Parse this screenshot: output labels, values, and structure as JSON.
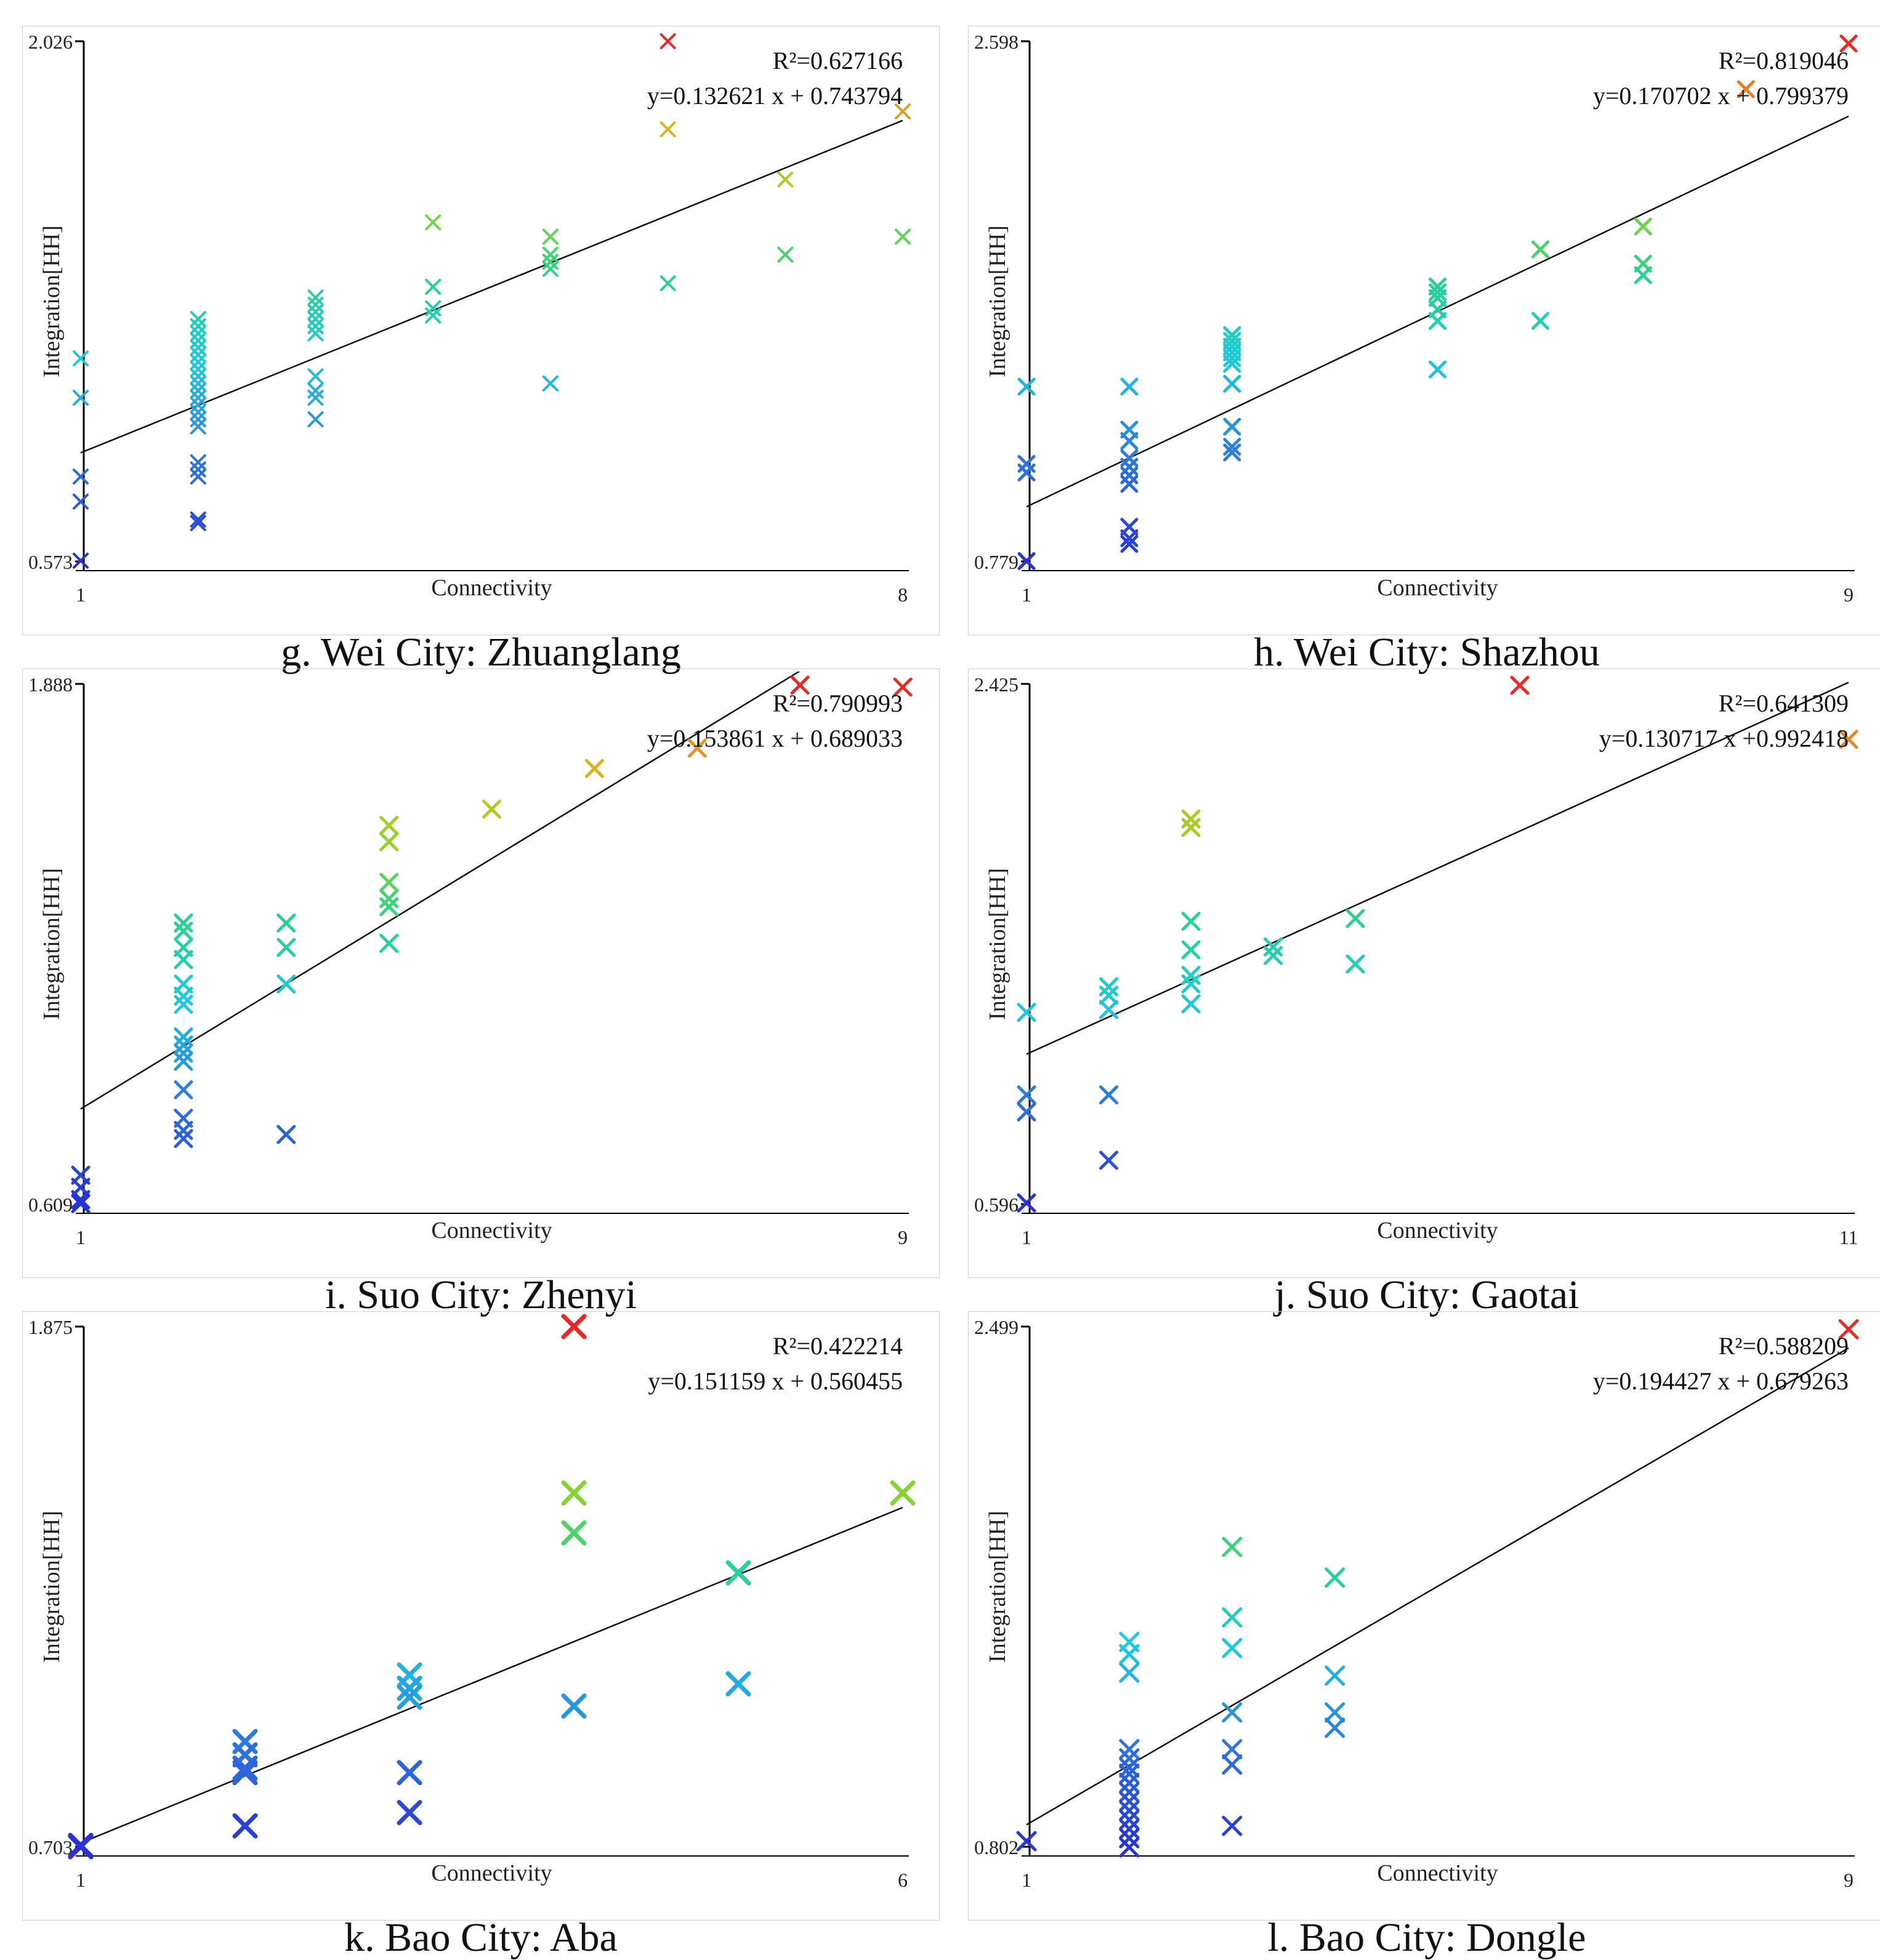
{
  "chart_data": [
    {
      "type": "scatter",
      "caption": "g. Wei City: Zhuanglang",
      "xlabel": "Connectivity",
      "ylabel": "Integration[HH]",
      "xlim": [
        1,
        8
      ],
      "ylim": [
        0.573,
        2.026
      ],
      "x_tick_labels": [
        "1",
        "8"
      ],
      "y_tick_labels": [
        "0.573",
        "2.026"
      ],
      "r2_text": "R²=0.627166",
      "equation_text": "y=0.132621 x + 0.743794",
      "slope": 0.132621,
      "intercept": 0.743794,
      "points": [
        {
          "x": 1,
          "y": 1.14
        },
        {
          "x": 1,
          "y": 1.03
        },
        {
          "x": 1,
          "y": 0.81
        },
        {
          "x": 1,
          "y": 0.74
        },
        {
          "x": 1,
          "y": 0.575
        },
        {
          "x": 2,
          "y": 1.25
        },
        {
          "x": 2,
          "y": 1.23
        },
        {
          "x": 2,
          "y": 1.21
        },
        {
          "x": 2,
          "y": 1.19
        },
        {
          "x": 2,
          "y": 1.17
        },
        {
          "x": 2,
          "y": 1.15
        },
        {
          "x": 2,
          "y": 1.13
        },
        {
          "x": 2,
          "y": 1.11
        },
        {
          "x": 2,
          "y": 1.09
        },
        {
          "x": 2,
          "y": 1.07
        },
        {
          "x": 2,
          "y": 1.05
        },
        {
          "x": 2,
          "y": 1.03
        },
        {
          "x": 2,
          "y": 1.01
        },
        {
          "x": 2,
          "y": 0.99
        },
        {
          "x": 2,
          "y": 0.97
        },
        {
          "x": 2,
          "y": 0.95
        },
        {
          "x": 2,
          "y": 0.85
        },
        {
          "x": 2,
          "y": 0.83
        },
        {
          "x": 2,
          "y": 0.81
        },
        {
          "x": 2,
          "y": 0.69
        },
        {
          "x": 2,
          "y": 0.68
        },
        {
          "x": 3,
          "y": 1.31
        },
        {
          "x": 3,
          "y": 1.29
        },
        {
          "x": 3,
          "y": 1.27
        },
        {
          "x": 3,
          "y": 1.25
        },
        {
          "x": 3,
          "y": 1.23
        },
        {
          "x": 3,
          "y": 1.21
        },
        {
          "x": 3,
          "y": 1.09
        },
        {
          "x": 3,
          "y": 1.05
        },
        {
          "x": 3,
          "y": 1.03
        },
        {
          "x": 3,
          "y": 0.97
        },
        {
          "x": 4,
          "y": 1.52
        },
        {
          "x": 4,
          "y": 1.34
        },
        {
          "x": 4,
          "y": 1.28
        },
        {
          "x": 4,
          "y": 1.26
        },
        {
          "x": 5,
          "y": 1.48
        },
        {
          "x": 5,
          "y": 1.43
        },
        {
          "x": 5,
          "y": 1.41
        },
        {
          "x": 5,
          "y": 1.39
        },
        {
          "x": 5,
          "y": 1.07
        },
        {
          "x": 6,
          "y": 2.026
        },
        {
          "x": 6,
          "y": 1.78
        },
        {
          "x": 6,
          "y": 1.35
        },
        {
          "x": 7,
          "y": 1.64
        },
        {
          "x": 7,
          "y": 1.43
        },
        {
          "x": 8,
          "y": 1.83
        },
        {
          "x": 8,
          "y": 1.48
        }
      ]
    },
    {
      "type": "scatter",
      "caption": "h. Wei City: Shazhou",
      "xlabel": "Connectivity",
      "ylabel": "Integration[HH]",
      "xlim": [
        1,
        9
      ],
      "ylim": [
        0.779,
        2.598
      ],
      "x_tick_labels": [
        "1",
        "9"
      ],
      "y_tick_labels": [
        "0.779",
        "2.598"
      ],
      "r2_text": "R²=0.819046",
      "equation_text": "y=0.170702 x + 0.799379",
      "slope": 0.170702,
      "intercept": 0.799379,
      "points": [
        {
          "x": 1,
          "y": 1.39
        },
        {
          "x": 1,
          "y": 1.12
        },
        {
          "x": 1,
          "y": 1.09
        },
        {
          "x": 1,
          "y": 0.78
        },
        {
          "x": 2,
          "y": 1.39
        },
        {
          "x": 2,
          "y": 1.24
        },
        {
          "x": 2,
          "y": 1.2
        },
        {
          "x": 2,
          "y": 1.14
        },
        {
          "x": 2,
          "y": 1.11
        },
        {
          "x": 2,
          "y": 1.08
        },
        {
          "x": 2,
          "y": 1.05
        },
        {
          "x": 2,
          "y": 0.9
        },
        {
          "x": 2,
          "y": 0.86
        },
        {
          "x": 2,
          "y": 0.84
        },
        {
          "x": 3,
          "y": 1.57
        },
        {
          "x": 3,
          "y": 1.55
        },
        {
          "x": 3,
          "y": 1.53
        },
        {
          "x": 3,
          "y": 1.51
        },
        {
          "x": 3,
          "y": 1.49
        },
        {
          "x": 3,
          "y": 1.47
        },
        {
          "x": 3,
          "y": 1.4
        },
        {
          "x": 3,
          "y": 1.25
        },
        {
          "x": 3,
          "y": 1.18
        },
        {
          "x": 3,
          "y": 1.16
        },
        {
          "x": 5,
          "y": 1.74
        },
        {
          "x": 5,
          "y": 1.72
        },
        {
          "x": 5,
          "y": 1.7
        },
        {
          "x": 5,
          "y": 1.66
        },
        {
          "x": 5,
          "y": 1.62
        },
        {
          "x": 5,
          "y": 1.45
        },
        {
          "x": 6,
          "y": 1.87
        },
        {
          "x": 6,
          "y": 1.62
        },
        {
          "x": 7,
          "y": 1.95
        },
        {
          "x": 7,
          "y": 1.82
        },
        {
          "x": 7,
          "y": 1.78
        },
        {
          "x": 8,
          "y": 2.43
        },
        {
          "x": 9,
          "y": 2.59
        }
      ]
    },
    {
      "type": "scatter",
      "caption": "i. Suo City: Zhenyi",
      "xlabel": "Connectivity",
      "ylabel": "Integration[HH]",
      "xlim": [
        1,
        9
      ],
      "ylim": [
        0.609,
        1.888
      ],
      "x_tick_labels": [
        "1",
        "9"
      ],
      "y_tick_labels": [
        "0.609",
        "1.888"
      ],
      "r2_text": "R²=0.790993",
      "equation_text": "y=0.153861 x + 0.689033",
      "slope": 0.153861,
      "intercept": 0.689033,
      "points": [
        {
          "x": 1,
          "y": 0.68
        },
        {
          "x": 1,
          "y": 0.65
        },
        {
          "x": 1,
          "y": 0.62
        },
        {
          "x": 1,
          "y": 0.61
        },
        {
          "x": 2,
          "y": 1.3
        },
        {
          "x": 2,
          "y": 1.28
        },
        {
          "x": 2,
          "y": 1.24
        },
        {
          "x": 2,
          "y": 1.21
        },
        {
          "x": 2,
          "y": 1.15
        },
        {
          "x": 2,
          "y": 1.12
        },
        {
          "x": 2,
          "y": 1.1
        },
        {
          "x": 2,
          "y": 1.02
        },
        {
          "x": 2,
          "y": 1.0
        },
        {
          "x": 2,
          "y": 0.98
        },
        {
          "x": 2,
          "y": 0.96
        },
        {
          "x": 2,
          "y": 0.89
        },
        {
          "x": 2,
          "y": 0.82
        },
        {
          "x": 2,
          "y": 0.79
        },
        {
          "x": 2,
          "y": 0.77
        },
        {
          "x": 3,
          "y": 1.3
        },
        {
          "x": 3,
          "y": 1.24
        },
        {
          "x": 3,
          "y": 1.15
        },
        {
          "x": 3,
          "y": 0.78
        },
        {
          "x": 4,
          "y": 1.54
        },
        {
          "x": 4,
          "y": 1.5
        },
        {
          "x": 4,
          "y": 1.4
        },
        {
          "x": 4,
          "y": 1.36
        },
        {
          "x": 4,
          "y": 1.34
        },
        {
          "x": 4,
          "y": 1.25
        },
        {
          "x": 5,
          "y": 1.58
        },
        {
          "x": 6,
          "y": 1.68
        },
        {
          "x": 7,
          "y": 1.73
        },
        {
          "x": 8,
          "y": 1.885
        },
        {
          "x": 9,
          "y": 1.88
        }
      ]
    },
    {
      "type": "scatter",
      "caption": "j. Suo City: Gaotai",
      "xlabel": "Connectivity",
      "ylabel": "Integration[HH]",
      "xlim": [
        1,
        11
      ],
      "ylim": [
        0.596,
        2.425
      ],
      "x_tick_labels": [
        "1",
        "11"
      ],
      "y_tick_labels": [
        "0.596",
        "2.425"
      ],
      "r2_text": "R²=0.641309",
      "equation_text": "y=0.130717 x +0.992418",
      "slope": 0.130717,
      "intercept": 0.992418,
      "points": [
        {
          "x": 1,
          "y": 1.27
        },
        {
          "x": 1,
          "y": 0.98
        },
        {
          "x": 1,
          "y": 0.92
        },
        {
          "x": 1,
          "y": 0.6
        },
        {
          "x": 2,
          "y": 1.36
        },
        {
          "x": 2,
          "y": 1.33
        },
        {
          "x": 2,
          "y": 1.28
        },
        {
          "x": 2,
          "y": 0.98
        },
        {
          "x": 2,
          "y": 0.75
        },
        {
          "x": 3,
          "y": 1.95
        },
        {
          "x": 3,
          "y": 1.92
        },
        {
          "x": 3,
          "y": 1.59
        },
        {
          "x": 3,
          "y": 1.49
        },
        {
          "x": 3,
          "y": 1.4
        },
        {
          "x": 3,
          "y": 1.37
        },
        {
          "x": 3,
          "y": 1.3
        },
        {
          "x": 4,
          "y": 1.5
        },
        {
          "x": 4,
          "y": 1.47
        },
        {
          "x": 5,
          "y": 1.6
        },
        {
          "x": 5,
          "y": 1.44
        },
        {
          "x": 7,
          "y": 2.42
        },
        {
          "x": 11,
          "y": 2.23
        }
      ]
    },
    {
      "type": "scatter",
      "caption": "k. Bao City: Aba",
      "xlabel": "Connectivity",
      "ylabel": "Integration[HH]",
      "xlim": [
        1,
        6
      ],
      "ylim": [
        0.703,
        1.875
      ],
      "x_tick_labels": [
        "1",
        "6"
      ],
      "y_tick_labels": [
        "0.703",
        "1.875"
      ],
      "r2_text": "R²=0.422214",
      "equation_text": "y=0.151159 x + 0.560455",
      "slope": 0.151159,
      "intercept": 0.560455,
      "points": [
        {
          "x": 1,
          "y": 0.706
        },
        {
          "x": 1,
          "y": 0.703
        },
        {
          "x": 2,
          "y": 0.94
        },
        {
          "x": 2,
          "y": 0.91
        },
        {
          "x": 2,
          "y": 0.88
        },
        {
          "x": 2,
          "y": 0.87
        },
        {
          "x": 2,
          "y": 0.75
        },
        {
          "x": 3,
          "y": 1.09
        },
        {
          "x": 3,
          "y": 1.06
        },
        {
          "x": 3,
          "y": 1.04
        },
        {
          "x": 3,
          "y": 0.87
        },
        {
          "x": 3,
          "y": 0.78
        },
        {
          "x": 4,
          "y": 1.875
        },
        {
          "x": 4,
          "y": 1.5
        },
        {
          "x": 4,
          "y": 1.41
        },
        {
          "x": 4,
          "y": 1.02
        },
        {
          "x": 5,
          "y": 1.32
        },
        {
          "x": 5,
          "y": 1.07
        },
        {
          "x": 6,
          "y": 1.5
        }
      ]
    },
    {
      "type": "scatter",
      "caption": "l. Bao City: Dongle",
      "xlabel": "Connectivity",
      "ylabel": "Integration[HH]",
      "xlim": [
        1,
        9
      ],
      "ylim": [
        0.802,
        2.499
      ],
      "x_tick_labels": [
        "1",
        "9"
      ],
      "y_tick_labels": [
        "0.802",
        "2.499"
      ],
      "r2_text": "R²=0.588209",
      "equation_text": "y=0.194427 x + 0.679263",
      "slope": 0.194427,
      "intercept": 0.679263,
      "points": [
        {
          "x": 1,
          "y": 0.82
        },
        {
          "x": 2,
          "y": 1.47
        },
        {
          "x": 2,
          "y": 1.43
        },
        {
          "x": 2,
          "y": 1.37
        },
        {
          "x": 2,
          "y": 1.12
        },
        {
          "x": 2,
          "y": 1.09
        },
        {
          "x": 2,
          "y": 1.06
        },
        {
          "x": 2,
          "y": 1.04
        },
        {
          "x": 2,
          "y": 1.01
        },
        {
          "x": 2,
          "y": 0.98
        },
        {
          "x": 2,
          "y": 0.95
        },
        {
          "x": 2,
          "y": 0.92
        },
        {
          "x": 2,
          "y": 0.89
        },
        {
          "x": 2,
          "y": 0.86
        },
        {
          "x": 2,
          "y": 0.83
        },
        {
          "x": 2,
          "y": 0.8
        },
        {
          "x": 3,
          "y": 1.78
        },
        {
          "x": 3,
          "y": 1.55
        },
        {
          "x": 3,
          "y": 1.45
        },
        {
          "x": 3,
          "y": 1.24
        },
        {
          "x": 3,
          "y": 1.12
        },
        {
          "x": 3,
          "y": 1.07
        },
        {
          "x": 3,
          "y": 0.87
        },
        {
          "x": 4,
          "y": 1.68
        },
        {
          "x": 4,
          "y": 1.36
        },
        {
          "x": 4,
          "y": 1.24
        },
        {
          "x": 4,
          "y": 1.19
        },
        {
          "x": 9,
          "y": 2.49
        }
      ]
    }
  ]
}
